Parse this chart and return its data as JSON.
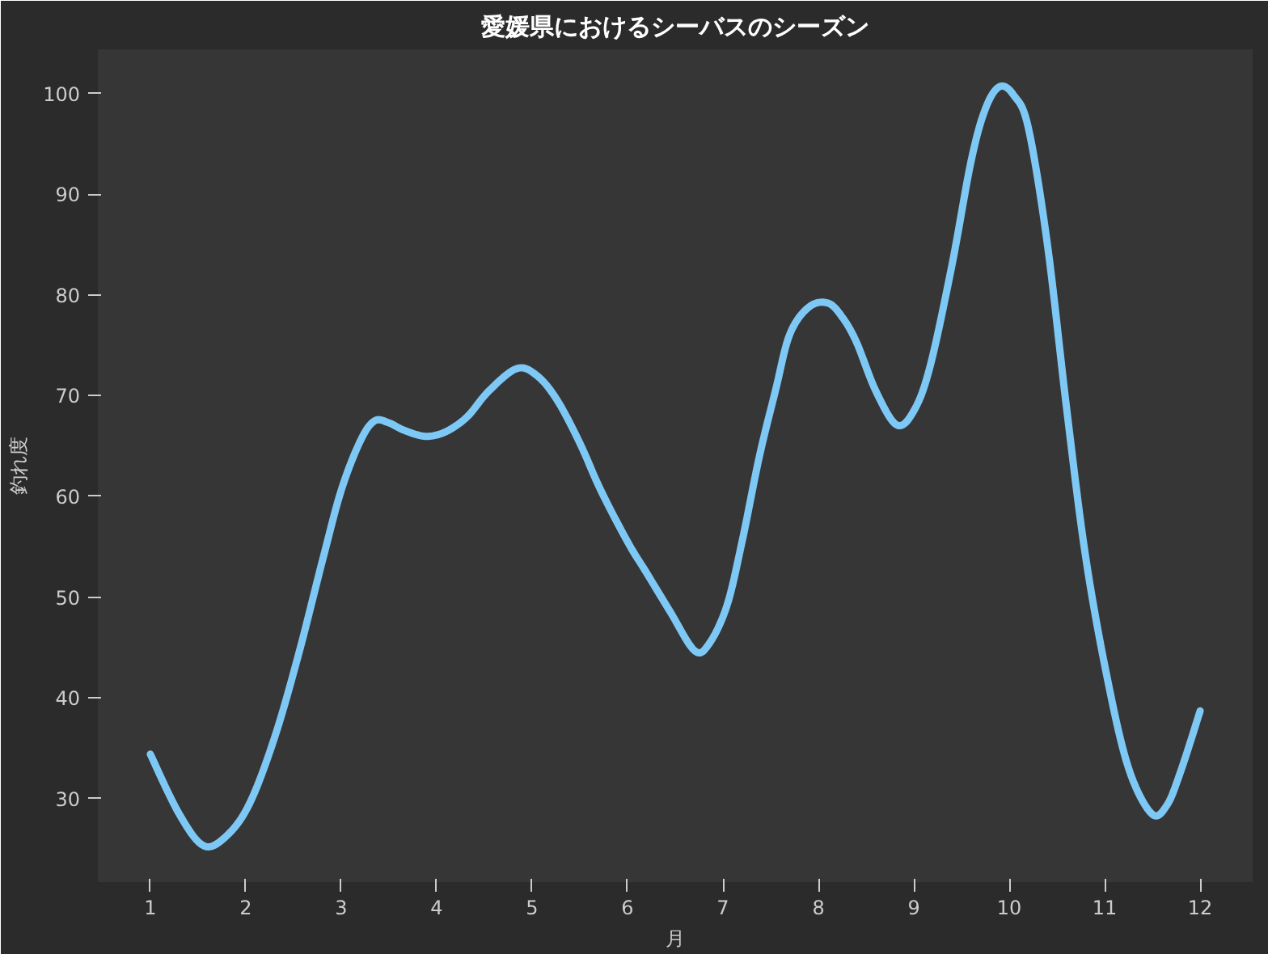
{
  "chart_data": {
    "type": "line",
    "title": "愛媛県におけるシーバスのシーズン",
    "xlabel": "月",
    "ylabel": "釣れ度",
    "xlim": [
      0.45,
      12.55
    ],
    "ylim": [
      21.7,
      104.4
    ],
    "xticks": [
      1,
      2,
      3,
      4,
      5,
      6,
      7,
      8,
      9,
      10,
      11,
      12
    ],
    "yticks": [
      30,
      40,
      50,
      60,
      70,
      80,
      90,
      100
    ],
    "grid": false,
    "marker": "none",
    "line_style": "solid",
    "series": [
      {
        "color": "#7ec8f5",
        "x": [
          1.0,
          1.3,
          1.56,
          1.8,
          2.04,
          2.3,
          2.55,
          2.8,
          3.0,
          3.2,
          3.35,
          3.5,
          3.65,
          3.85,
          4.0,
          4.15,
          4.33,
          4.55,
          4.84,
          5.05,
          5.26,
          5.5,
          5.72,
          6.0,
          6.2,
          6.45,
          6.7,
          6.85,
          7.04,
          7.2,
          7.38,
          7.55,
          7.7,
          7.9,
          8.1,
          8.25,
          8.4,
          8.6,
          8.82,
          9.0,
          9.17,
          9.4,
          9.6,
          9.75,
          9.9,
          10.05,
          10.2,
          10.4,
          10.6,
          10.8,
          11.03,
          11.25,
          11.49,
          11.65,
          11.8,
          12.0
        ],
        "values": [
          34.4,
          28.5,
          25.3,
          26.3,
          29.5,
          36.0,
          44.2,
          53.5,
          60.6,
          65.5,
          67.5,
          67.3,
          66.6,
          66.0,
          66.1,
          66.7,
          68.0,
          70.5,
          72.7,
          72.0,
          69.6,
          65.3,
          60.6,
          55.5,
          52.4,
          48.5,
          44.7,
          45.3,
          49.1,
          55.5,
          63.9,
          70.5,
          76.1,
          78.8,
          79.2,
          77.8,
          75.3,
          70.5,
          67.1,
          68.5,
          72.9,
          83.0,
          93.3,
          98.5,
          100.7,
          99.8,
          96.6,
          85.0,
          68.8,
          54.0,
          41.8,
          33.0,
          28.5,
          29.3,
          32.8,
          38.7
        ]
      }
    ]
  }
}
